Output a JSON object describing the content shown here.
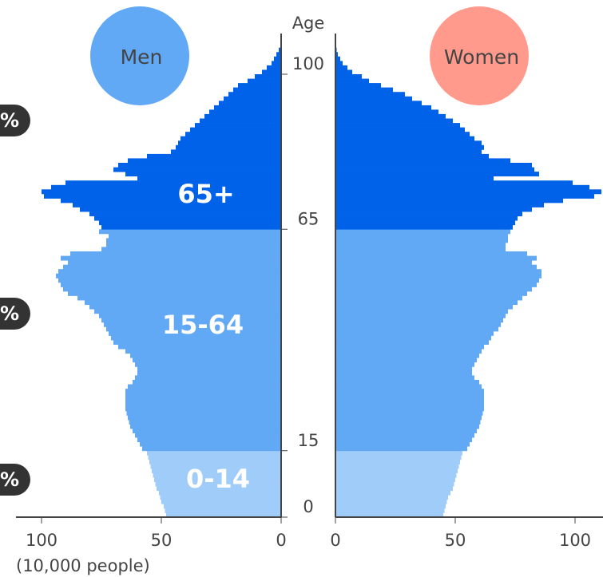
{
  "chart_data": {
    "type": "bar",
    "orientation": "population-pyramid",
    "ages": [
      0,
      1,
      2,
      3,
      4,
      5,
      6,
      7,
      8,
      9,
      10,
      11,
      12,
      13,
      14,
      15,
      16,
      17,
      18,
      19,
      20,
      21,
      22,
      23,
      24,
      25,
      26,
      27,
      28,
      29,
      30,
      31,
      32,
      33,
      34,
      35,
      36,
      37,
      38,
      39,
      40,
      41,
      42,
      43,
      44,
      45,
      46,
      47,
      48,
      49,
      50,
      51,
      52,
      53,
      54,
      55,
      56,
      57,
      58,
      59,
      60,
      61,
      62,
      63,
      64,
      65,
      66,
      67,
      68,
      69,
      70,
      71,
      72,
      73,
      74,
      75,
      76,
      77,
      78,
      79,
      80,
      81,
      82,
      83,
      84,
      85,
      86,
      87,
      88,
      89,
      90,
      91,
      92,
      93,
      94,
      95,
      96,
      97,
      98,
      99,
      100,
      101,
      102,
      103,
      104,
      105
    ],
    "series": [
      {
        "name": "Men",
        "values": [
          48,
          48.5,
          49,
          50,
          50.5,
          51,
          52,
          52.5,
          53,
          53.5,
          54,
          54.5,
          55,
          55.5,
          56,
          58,
          59,
          60,
          61,
          62,
          63,
          63.5,
          64,
          64.5,
          65,
          65,
          65,
          65,
          65,
          64,
          62,
          61,
          60,
          60,
          61,
          62,
          63,
          65,
          68,
          70,
          71,
          72,
          73,
          74,
          75,
          76,
          78,
          80,
          82,
          85,
          89,
          91,
          92,
          93,
          94,
          93,
          91,
          89,
          92,
          88,
          75,
          73,
          73,
          72,
          76,
          75,
          76,
          78,
          80,
          84,
          87,
          92,
          99,
          100,
          96,
          90,
          60,
          65,
          70,
          68,
          64,
          56,
          46,
          44,
          43,
          42,
          40,
          38,
          36,
          34,
          32,
          30,
          28,
          26,
          24,
          22,
          20,
          18,
          14,
          11,
          8,
          6,
          4,
          3,
          2,
          1
        ]
      },
      {
        "name": "Women",
        "values": [
          45,
          45.5,
          46,
          46.5,
          47,
          48,
          49,
          49.5,
          50,
          50.5,
          51,
          51.5,
          52,
          52.5,
          53,
          55,
          56,
          57,
          58,
          59,
          60,
          60.5,
          61,
          61.5,
          62,
          62,
          62,
          62,
          62,
          61,
          60,
          58,
          57,
          57,
          58,
          59,
          60,
          61,
          62,
          64,
          65,
          66,
          68,
          69,
          70,
          71,
          72,
          74,
          76,
          78,
          80,
          82,
          84,
          85,
          86,
          86,
          84,
          82,
          84,
          80,
          71,
          71,
          72,
          72,
          73,
          74,
          75,
          76,
          78,
          82,
          87,
          95,
          108,
          111,
          106,
          99,
          66,
          85,
          83,
          82,
          73,
          64,
          61,
          62,
          61,
          58,
          56,
          54,
          52,
          49,
          46,
          43,
          40,
          36,
          32,
          29,
          24,
          19,
          14,
          11,
          7,
          5,
          3,
          2,
          1,
          0.5
        ]
      }
    ],
    "age_groups": [
      {
        "label": "65+",
        "min_age": 65,
        "max_age": 105,
        "men_color": "#0062e8",
        "women_color": "#0062e8"
      },
      {
        "label": "15-64",
        "min_age": 15,
        "max_age": 64,
        "men_color": "#61a8f5",
        "women_color": "#61a8f5"
      },
      {
        "label": "0-14",
        "min_age": 0,
        "max_age": 14,
        "men_color": "#a0ccf9",
        "women_color": "#a0ccf9"
      }
    ],
    "age_axis": {
      "title": "Age",
      "ticks": [
        0,
        15,
        65,
        100
      ]
    },
    "x_axis": {
      "ticks": [
        100,
        50,
        0
      ],
      "unit_label": "(10,000 people)",
      "range": [
        0,
        110
      ]
    },
    "men_label": "Men",
    "women_label": "Women",
    "side_badges": [
      {
        "text": "%",
        "age_group": "65+"
      },
      {
        "text": "%",
        "age_group": "15-64"
      },
      {
        "text": "%",
        "age_group": "0-14"
      }
    ]
  },
  "colors": {
    "men_circle": "#61a8f5",
    "women_circle": "#ff9a8c",
    "axis": "#444444",
    "badge": "#333333"
  }
}
